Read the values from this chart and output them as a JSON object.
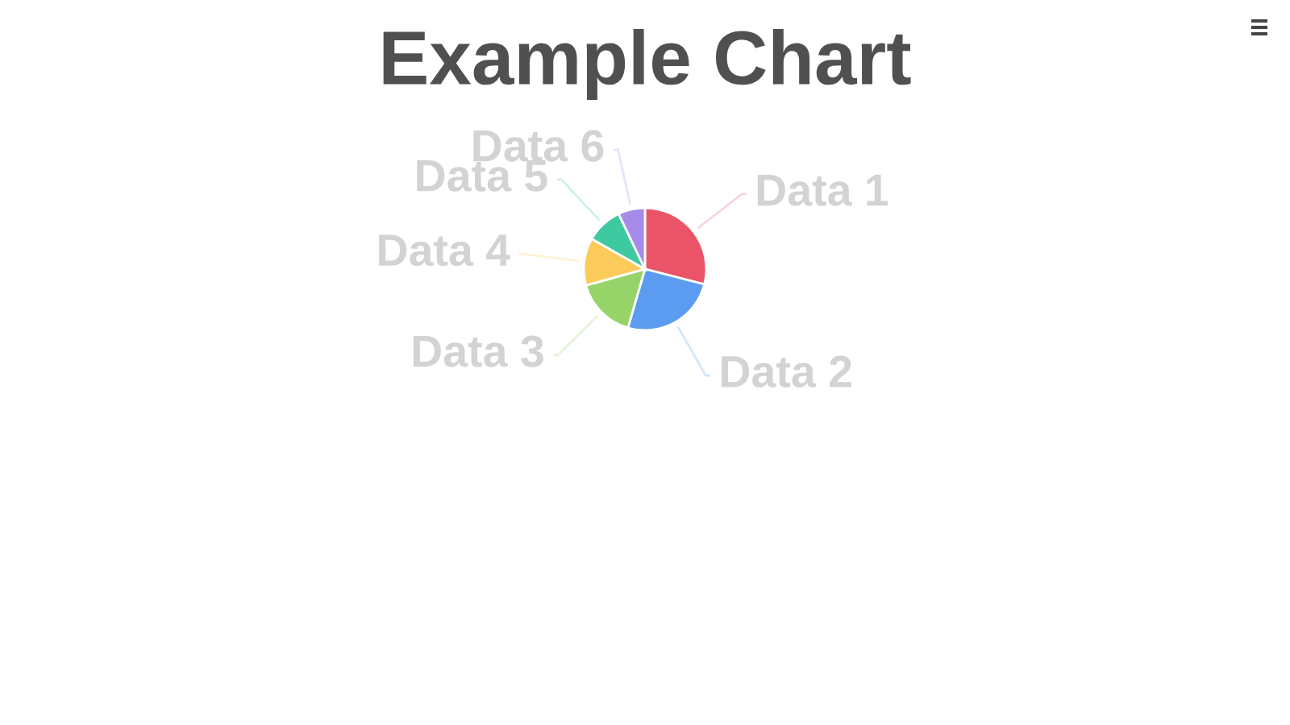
{
  "chart_data": {
    "type": "pie",
    "title": "Example Chart",
    "categories": [
      "Data 1",
      "Data 2",
      "Data 3",
      "Data 4",
      "Data 5",
      "Data 6"
    ],
    "values": [
      29.0,
      25.5,
      16.2,
      12.5,
      9.7,
      7.1
    ],
    "colors": [
      "#ea5468",
      "#5b9cf0",
      "#96d46a",
      "#fdcb5b",
      "#3ec9a0",
      "#a78bea"
    ]
  }
}
